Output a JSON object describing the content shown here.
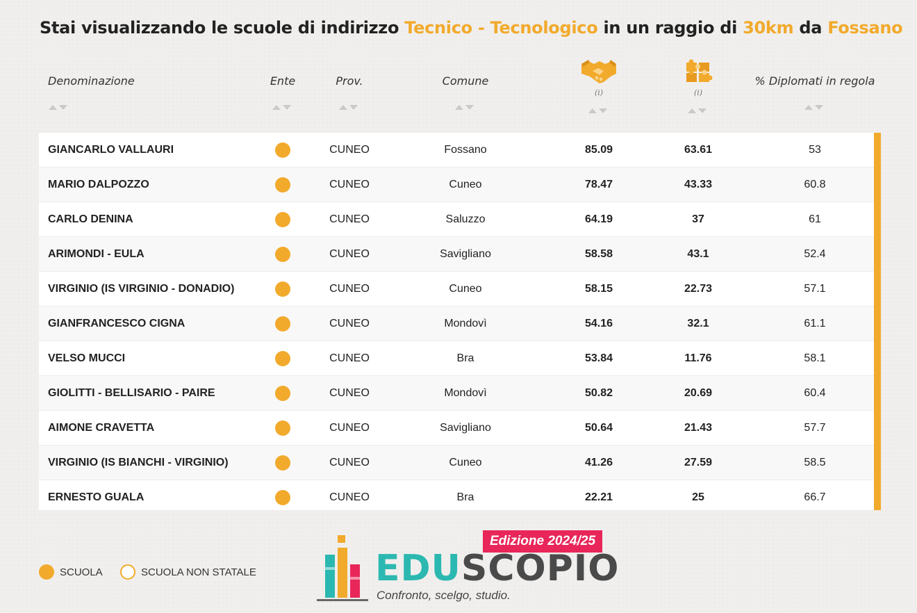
{
  "header": {
    "prefix": "Stai visualizzando le scuole di indirizzo",
    "indirizzo": "Tecnico - Tecnologico",
    "middle": "in un raggio di",
    "raggio": "30km",
    "da": "da",
    "citta": "Fossano"
  },
  "columns": {
    "denominazione": "Denominazione",
    "ente": "Ente",
    "prov": "Prov.",
    "comune": "Comune",
    "indice1_icon": "handshake-icon",
    "indice1_info": "(i)",
    "indice2_icon": "puzzle-icon",
    "indice2_info": "(i)",
    "diplomati": "% Diplomati in regola"
  },
  "rows": [
    {
      "name": "GIANCARLO VALLAURI",
      "prov": "CUNEO",
      "comune": "Fossano",
      "v1": "85.09",
      "v2": "63.61",
      "v3": "53"
    },
    {
      "name": "MARIO DALPOZZO",
      "prov": "CUNEO",
      "comune": "Cuneo",
      "v1": "78.47",
      "v2": "43.33",
      "v3": "60.8"
    },
    {
      "name": "CARLO DENINA",
      "prov": "CUNEO",
      "comune": "Saluzzo",
      "v1": "64.19",
      "v2": "37",
      "v3": "61"
    },
    {
      "name": "ARIMONDI - EULA",
      "prov": "CUNEO",
      "comune": "Savigliano",
      "v1": "58.58",
      "v2": "43.1",
      "v3": "52.4"
    },
    {
      "name": "VIRGINIO (IS VIRGINIO - DONADIO)",
      "prov": "CUNEO",
      "comune": "Cuneo",
      "v1": "58.15",
      "v2": "22.73",
      "v3": "57.1"
    },
    {
      "name": "GIANFRANCESCO CIGNA",
      "prov": "CUNEO",
      "comune": "Mondovì",
      "v1": "54.16",
      "v2": "32.1",
      "v3": "61.1"
    },
    {
      "name": "VELSO MUCCI",
      "prov": "CUNEO",
      "comune": "Bra",
      "v1": "53.84",
      "v2": "11.76",
      "v3": "58.1"
    },
    {
      "name": "GIOLITTI - BELLISARIO - PAIRE",
      "prov": "CUNEO",
      "comune": "Mondovì",
      "v1": "50.82",
      "v2": "20.69",
      "v3": "60.4"
    },
    {
      "name": "AIMONE CRAVETTA",
      "prov": "CUNEO",
      "comune": "Savigliano",
      "v1": "50.64",
      "v2": "21.43",
      "v3": "57.7"
    },
    {
      "name": "VIRGINIO (IS BIANCHI - VIRGINIO)",
      "prov": "CUNEO",
      "comune": "Cuneo",
      "v1": "41.26",
      "v2": "27.59",
      "v3": "58.5"
    },
    {
      "name": "ERNESTO GUALA",
      "prov": "CUNEO",
      "comune": "Bra",
      "v1": "22.21",
      "v2": "25",
      "v3": "66.7"
    }
  ],
  "legend": {
    "scuola": "SCUOLA",
    "non_statale": "SCUOLA NON STATALE"
  },
  "logo": {
    "edition": "Edizione 2024/25",
    "brand_edu": "EDU",
    "brand_scopio": "SCOPIO",
    "tagline": "Confronto, scelgo, studio."
  },
  "colors": {
    "accent": "#f2aa2c",
    "edition_bg": "#e8265a",
    "brand_teal": "#2bb8b0"
  }
}
